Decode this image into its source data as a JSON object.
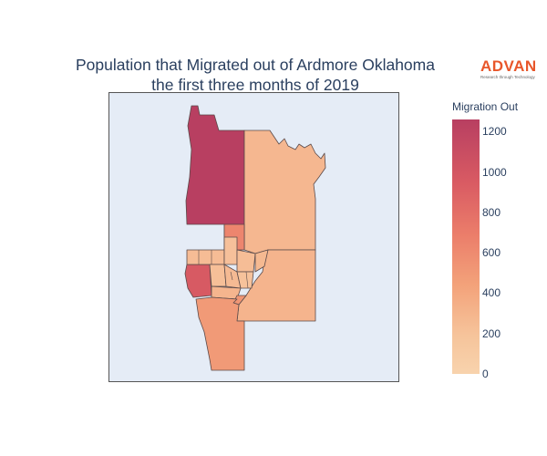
{
  "title": {
    "line1": "Population that Migrated out of Ardmore Oklahoma",
    "line2": "the first three months of 2019"
  },
  "logo": {
    "name": "ADVAN",
    "tagline": "Research through Technology"
  },
  "colorbar": {
    "title": "Migration Out",
    "ticks": [
      "1200",
      "1000",
      "800",
      "600",
      "400",
      "200",
      "0"
    ],
    "range": [
      0,
      1260
    ],
    "colors": [
      "#f8d3ad",
      "#f3a27a",
      "#eb7d6a",
      "#d95b63",
      "#b83f61"
    ]
  },
  "regions": [
    {
      "id": "north-west-tract",
      "value": 1260
    },
    {
      "id": "north-east-tract",
      "value": 180
    },
    {
      "id": "east-tract",
      "value": 200
    },
    {
      "id": "south-west-tract",
      "value": 380
    },
    {
      "id": "west-mid-tract",
      "value": 960
    },
    {
      "id": "small-north-tract",
      "value": 560
    },
    {
      "id": "central-tract-1",
      "value": 150
    },
    {
      "id": "central-tract-2",
      "value": 120
    },
    {
      "id": "central-tract-3",
      "value": 140
    },
    {
      "id": "central-tract-4",
      "value": 170
    },
    {
      "id": "central-tract-5",
      "value": 130
    },
    {
      "id": "central-tract-6",
      "value": 160
    },
    {
      "id": "central-tract-7",
      "value": 110
    },
    {
      "id": "central-tract-8",
      "value": 190
    },
    {
      "id": "small-south-tract",
      "value": 420
    }
  ]
}
